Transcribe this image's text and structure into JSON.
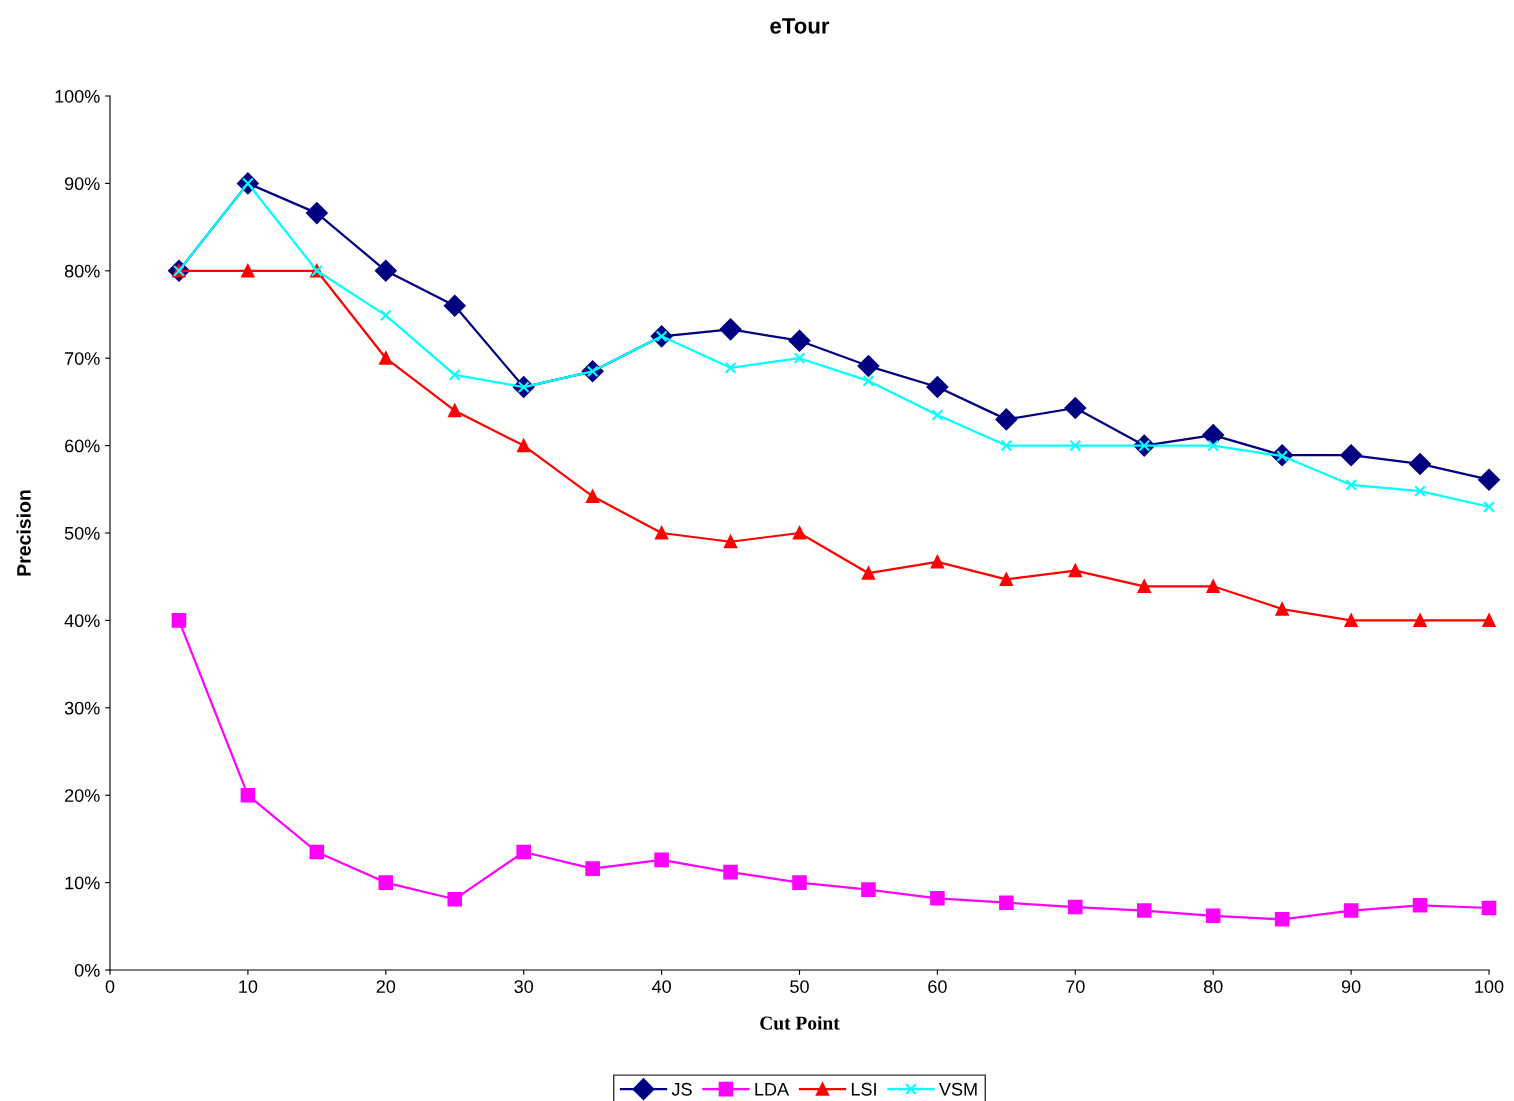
{
  "chart_data": {
    "type": "line",
    "title": "eTour",
    "xlabel": "Cut Point",
    "ylabel": "Precision",
    "x": [
      5,
      10,
      15,
      20,
      25,
      30,
      35,
      40,
      45,
      50,
      55,
      60,
      65,
      70,
      75,
      80,
      85,
      90,
      95,
      100
    ],
    "series": [
      {
        "name": "JS",
        "color": "#000080",
        "marker": "diamond",
        "values": [
          80,
          90,
          86.6,
          80,
          76,
          66.7,
          68.5,
          72.5,
          73.3,
          72,
          69.1,
          66.7,
          63,
          64.3,
          60,
          61.2,
          58.9,
          58.9,
          57.9,
          56.1
        ]
      },
      {
        "name": "LDA",
        "color": "#ff00ff",
        "marker": "square",
        "values": [
          40,
          20,
          13.5,
          10,
          8.1,
          13.5,
          11.6,
          12.6,
          11.2,
          10,
          9.2,
          8.2,
          7.7,
          7.2,
          6.8,
          6.2,
          5.8,
          6.8,
          7.4,
          7.1
        ]
      },
      {
        "name": "LSI",
        "color": "#ff0000",
        "marker": "triangle",
        "values": [
          80,
          80,
          80,
          70,
          64,
          60,
          54.2,
          50,
          49,
          50,
          45.4,
          46.7,
          44.7,
          45.7,
          43.9,
          43.9,
          41.3,
          40,
          40,
          40
        ]
      },
      {
        "name": "VSM",
        "color": "#00ffff",
        "marker": "cross",
        "values": [
          80,
          90,
          80,
          74.9,
          68.1,
          66.7,
          68.5,
          72.5,
          68.9,
          70,
          67.4,
          63.5,
          60,
          60,
          60,
          60,
          58.8,
          55.5,
          54.8,
          53
        ]
      }
    ],
    "xlim": [
      0,
      100
    ],
    "xticks": [
      0,
      10,
      20,
      30,
      40,
      50,
      60,
      70,
      80,
      90,
      100
    ],
    "ylim": [
      0,
      100
    ],
    "yticks": [
      {
        "value": 0,
        "label": "0%"
      },
      {
        "value": 10,
        "label": "10%"
      },
      {
        "value": 20,
        "label": "20%"
      },
      {
        "value": 30,
        "label": "30%"
      },
      {
        "value": 40,
        "label": "40%"
      },
      {
        "value": 50,
        "label": "50%"
      },
      {
        "value": 60,
        "label": "60%"
      },
      {
        "value": 70,
        "label": "70%"
      },
      {
        "value": 80,
        "label": "80%"
      },
      {
        "value": 90,
        "label": "90%"
      },
      {
        "value": 100,
        "label": "100%"
      }
    ],
    "grid": false,
    "legend": "bottom",
    "line_style": "solid"
  }
}
